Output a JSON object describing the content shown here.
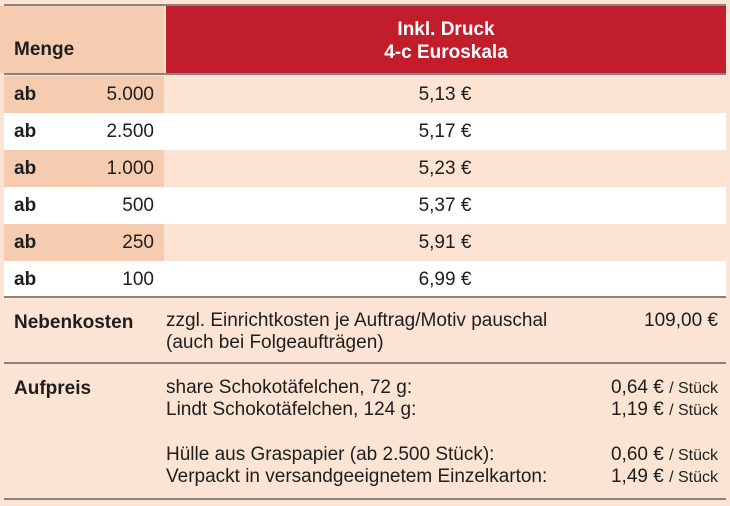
{
  "header": {
    "menge_label": "Menge",
    "druck_line1": "Inkl. Druck",
    "druck_line2": "4-c Euroskala"
  },
  "rows": [
    {
      "prefix": "ab",
      "quantity": "5.000",
      "price": "5,13 €"
    },
    {
      "prefix": "ab",
      "quantity": "2.500",
      "price": "5,17 €"
    },
    {
      "prefix": "ab",
      "quantity": "1.000",
      "price": "5,23 €"
    },
    {
      "prefix": "ab",
      "quantity": "500",
      "price": "5,37 €"
    },
    {
      "prefix": "ab",
      "quantity": "250",
      "price": "5,91 €"
    },
    {
      "prefix": "ab",
      "quantity": "100",
      "price": "6,99 €"
    }
  ],
  "nebenkosten": {
    "label": "Nebenkosten",
    "line1": "zzgl. Einrichtkosten je Auftrag/Motiv pauschal",
    "line2": "(auch bei Folgeaufträgen)",
    "price": "109,00 €"
  },
  "aufpreis": {
    "label": "Aufpreis",
    "items": [
      {
        "text": "share Schokotäfelchen, 72 g:",
        "price": "0,64 €",
        "unit": "/ Stück"
      },
      {
        "text": "Lindt Schokotäfelchen, 124 g:",
        "price": "1,19 €",
        "unit": "/ Stück"
      },
      {
        "text": "Hülle aus Graspapier (ab 2.500 Stück):",
        "price": "0,60 €",
        "unit": "/ Stück"
      },
      {
        "text": "Verpackt in versandgeeignetem Einzelkarton:",
        "price": "1,49 €",
        "unit": "/ Stück"
      }
    ]
  }
}
